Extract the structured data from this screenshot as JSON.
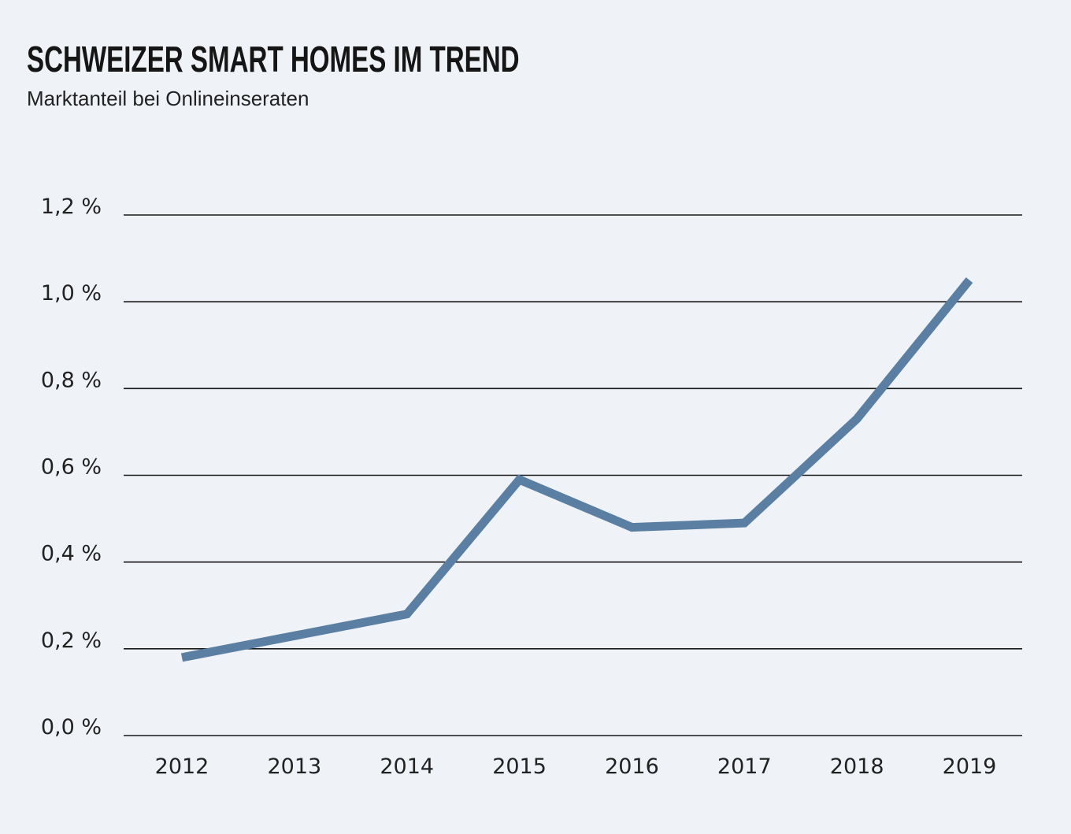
{
  "chart_data": {
    "type": "line",
    "title": "SCHWEIZER SMART HOMES IM TREND",
    "subtitle": "Marktanteil bei Onlineinseraten",
    "xlabel": "",
    "ylabel": "",
    "x": [
      "2012",
      "2013",
      "2014",
      "2015",
      "2016",
      "2017",
      "2018",
      "2019"
    ],
    "series": [
      {
        "values": [
          0.18,
          0.23,
          0.28,
          0.59,
          0.48,
          0.49,
          0.73,
          1.05
        ],
        "color": "#5a7fa3"
      }
    ],
    "ylim": [
      0,
      1.2
    ],
    "yticks": [
      0,
      0.2,
      0.4,
      0.6,
      0.8,
      1.0,
      1.2
    ],
    "ytick_labels": [
      "0,0 %",
      "0,2 %",
      "0,4 %",
      "0,6 %",
      "0,8 %",
      "1,0 %",
      "1,2 %"
    ],
    "grid": "horizontal",
    "legend": "none",
    "background": "#eff2f7"
  }
}
